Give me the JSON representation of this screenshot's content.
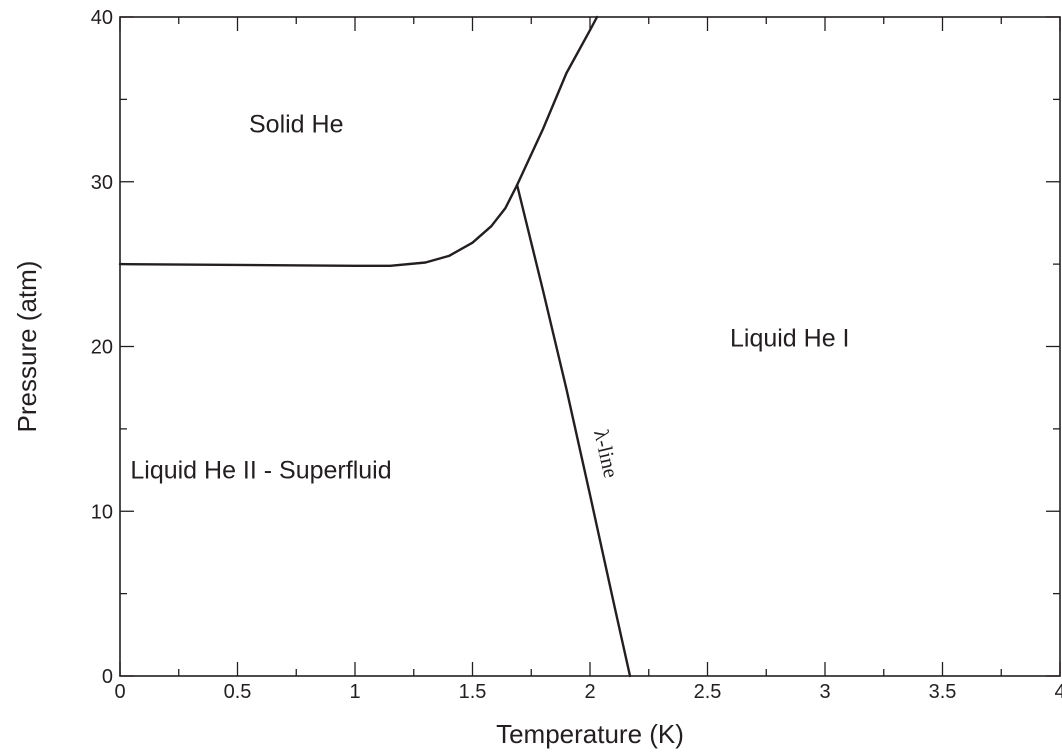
{
  "chart_data": {
    "type": "line",
    "title": "",
    "xlabel": "Temperature (K)",
    "ylabel": "Pressure (atm)",
    "xlim": [
      0,
      4
    ],
    "ylim": [
      0,
      40
    ],
    "x_ticks": [
      0,
      0.5,
      1,
      1.5,
      2,
      2.5,
      3,
      3.5,
      4
    ],
    "x_tick_labels": [
      "0",
      "0.5",
      "1",
      "1.5",
      "2",
      "2.5",
      "3",
      "3.5",
      "4"
    ],
    "y_ticks": [
      0,
      10,
      20,
      30,
      40
    ],
    "y_tick_labels": [
      "0",
      "10",
      "20",
      "30",
      "40"
    ],
    "x_minor_step": 0.25,
    "y_minor_step": 5,
    "grid": false,
    "series": [
      {
        "name": "",
        "x": [
          0,
          0.5,
          1.0,
          1.15,
          1.3,
          1.4,
          1.5,
          1.58,
          1.64,
          1.69
        ],
        "y": [
          25.0,
          24.95,
          24.9,
          24.9,
          25.1,
          25.5,
          26.3,
          27.3,
          28.4,
          29.8
        ]
      },
      {
        "name": "",
        "x": [
          1.69,
          1.8,
          1.9,
          2.0,
          2.03
        ],
        "y": [
          29.8,
          33.2,
          36.6,
          39.2,
          40.0
        ]
      },
      {
        "name": "λ-line",
        "x": [
          1.69,
          1.8,
          1.9,
          2.0,
          2.1,
          2.17
        ],
        "y": [
          29.8,
          23.4,
          17.4,
          11.0,
          4.5,
          0.0
        ]
      }
    ],
    "annotations": [
      {
        "text": "Solid He",
        "x": 0.75,
        "y": 33
      },
      {
        "text": "Liquid He I",
        "x": 2.85,
        "y": 20
      },
      {
        "text": "Liquid He II - Superfluid",
        "x": 0.6,
        "y": 12
      }
    ],
    "curve_label": {
      "text": "λ-line",
      "x": 2.04,
      "y": 13.4,
      "rotation": 77
    }
  }
}
